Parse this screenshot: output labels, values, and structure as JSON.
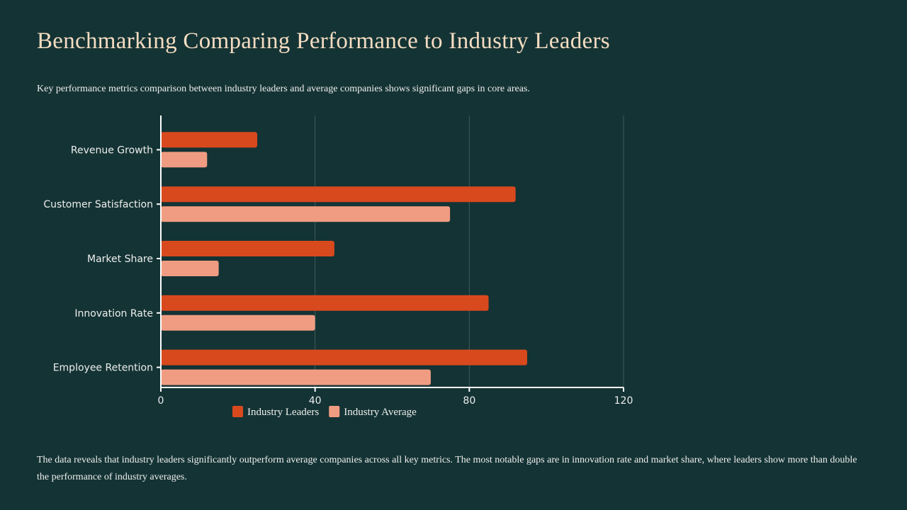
{
  "title": "Benchmarking Comparing Performance to Industry Leaders",
  "subtitle": "Key performance metrics comparison between industry leaders and average companies shows significant gaps in core areas.",
  "footer": "The data reveals that industry leaders significantly outperform average companies across all key metrics. The most notable gaps are in innovation rate and market share, where leaders show more than double the performance of industry averages.",
  "chart_data": {
    "type": "bar",
    "orientation": "horizontal",
    "categories": [
      "Revenue Growth",
      "Customer Satisfaction",
      "Market Share",
      "Innovation Rate",
      "Employee Retention"
    ],
    "series": [
      {
        "name": "Industry Leaders",
        "values": [
          25,
          92,
          45,
          85,
          95
        ],
        "color": "#d9491e"
      },
      {
        "name": "Industry Average",
        "values": [
          12,
          75,
          15,
          40,
          70
        ],
        "color": "#f09c82"
      }
    ],
    "xlim": [
      0,
      120
    ],
    "xticks": [
      0,
      40,
      80,
      120
    ],
    "grid": true,
    "legend": "bottom"
  }
}
